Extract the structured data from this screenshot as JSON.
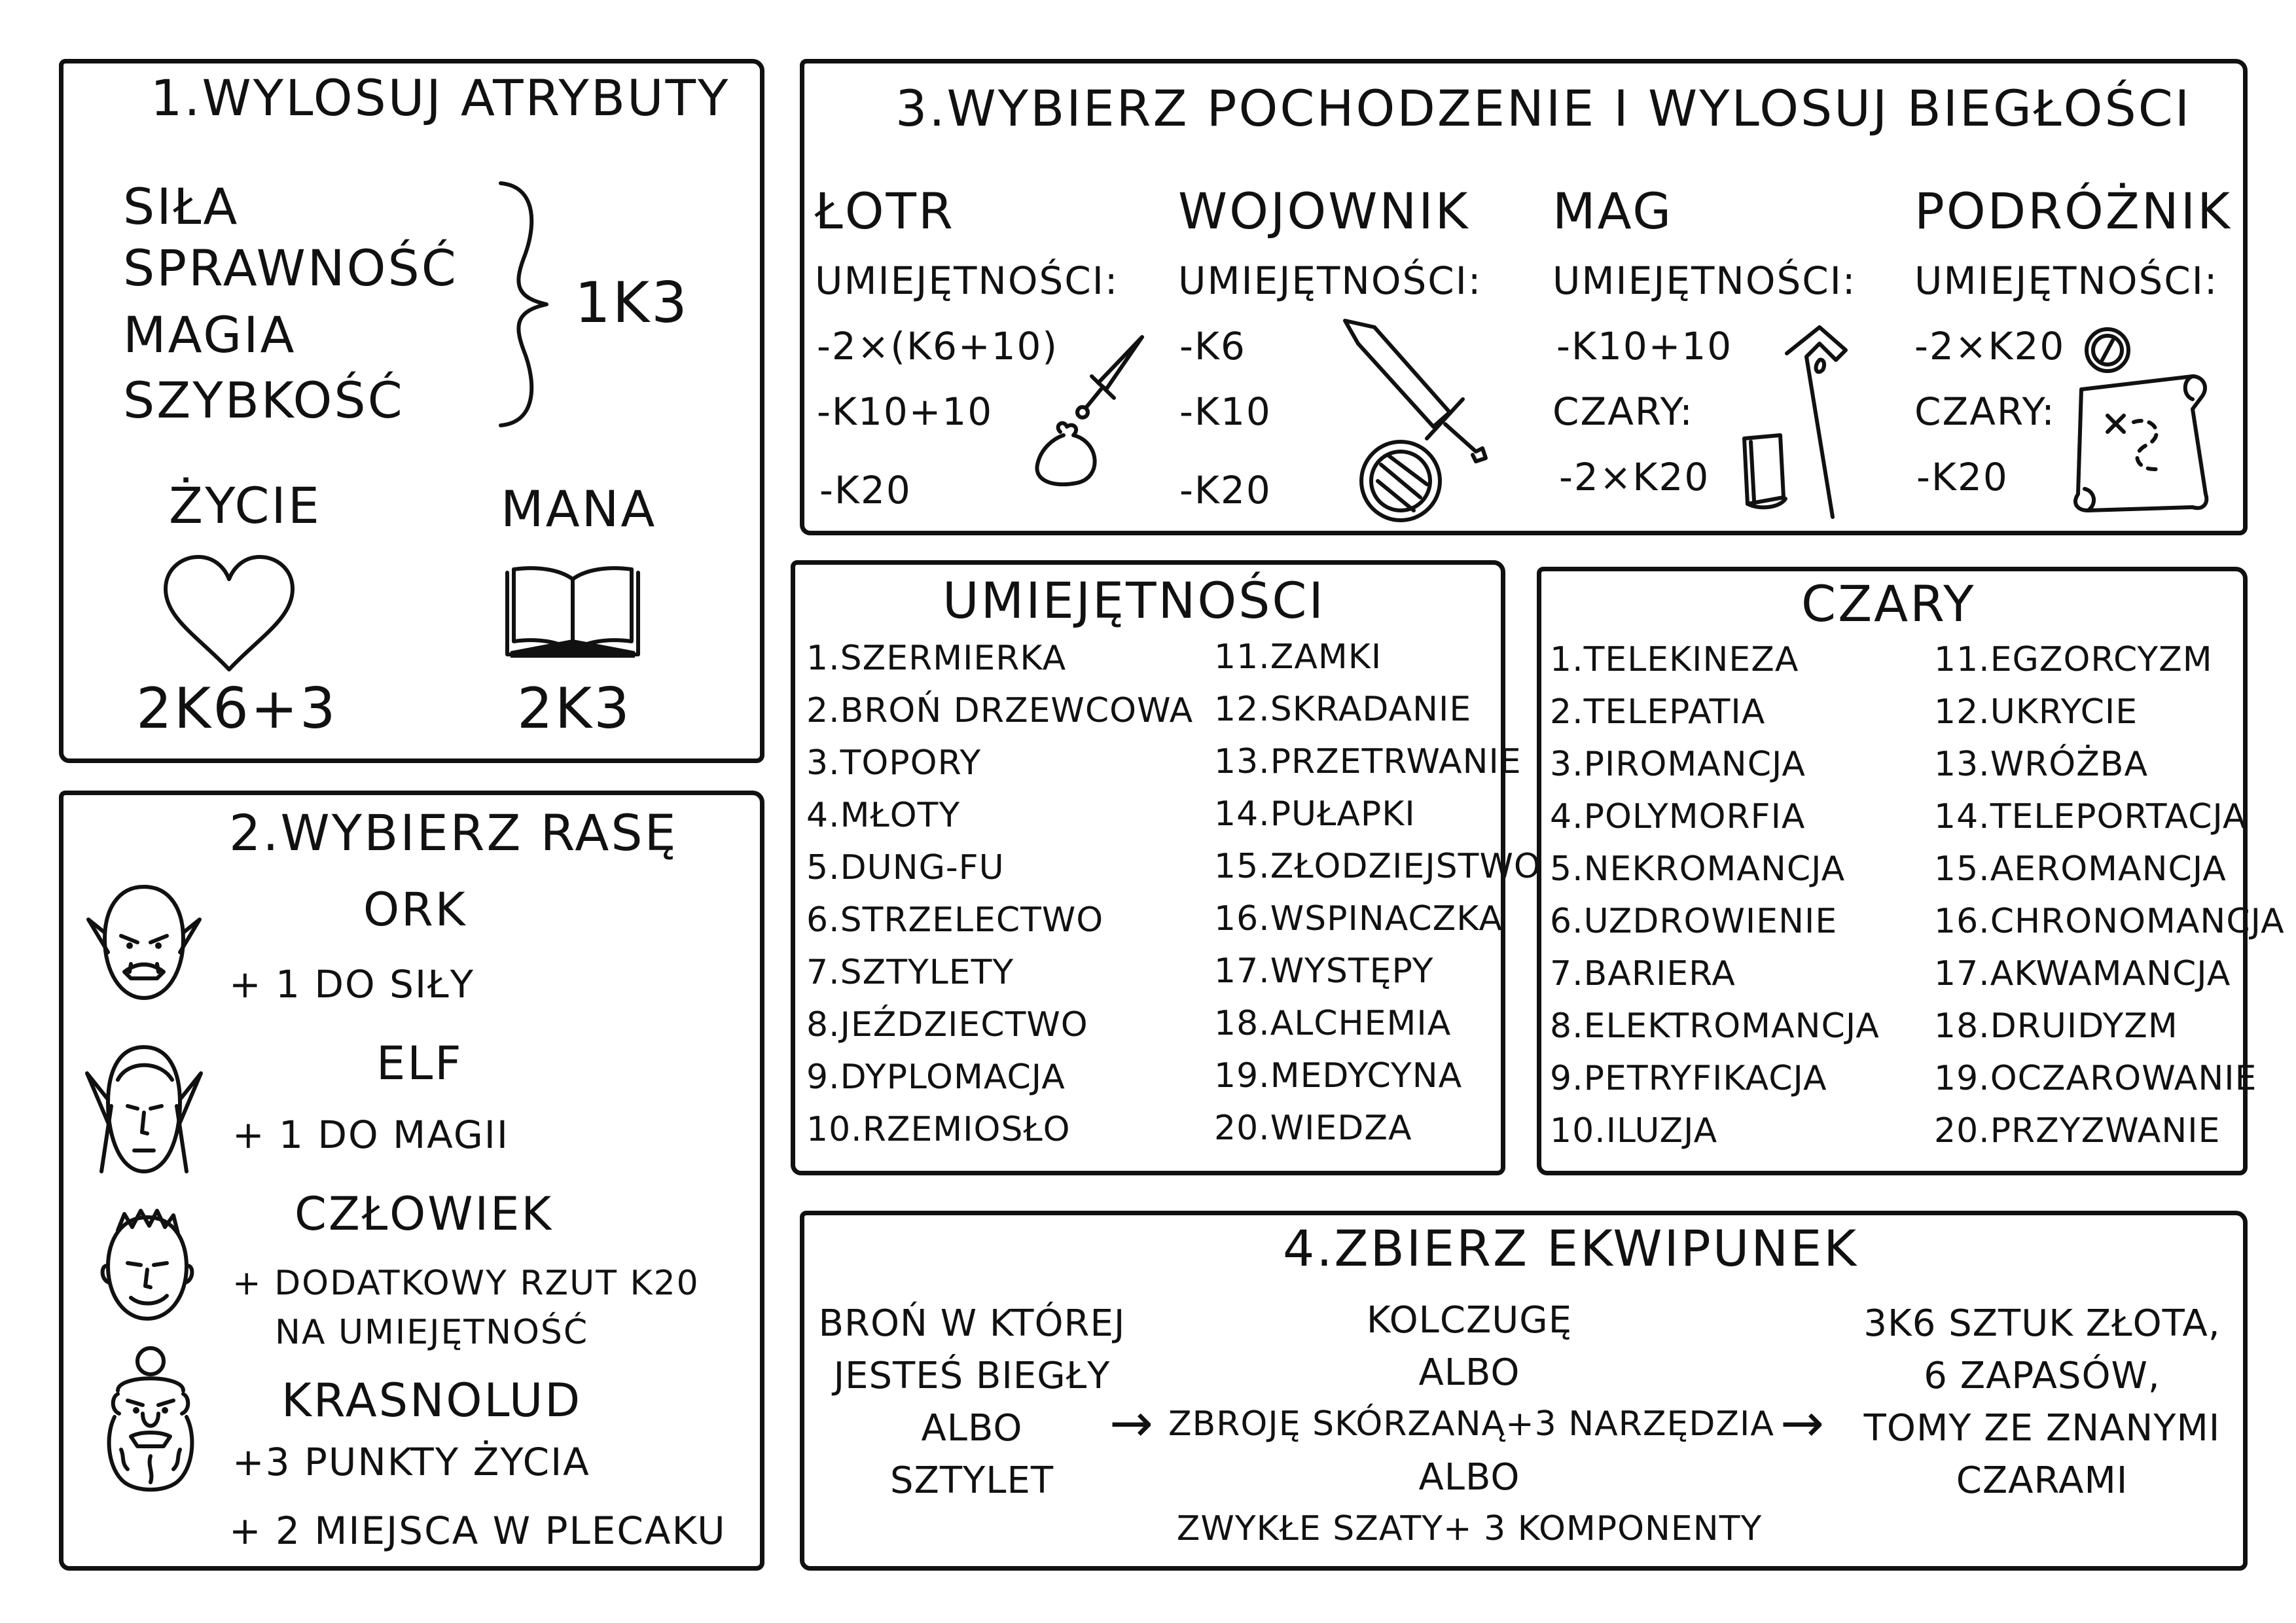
{
  "s1": {
    "title": "1.WYLOSUJ ATRYBUTY",
    "attributes": [
      "SIŁA",
      "SPRAWNOŚĆ",
      "MAGIA",
      "SZYBKOŚĆ"
    ],
    "attr_roll": "1K3",
    "life_label": "ŻYCIE",
    "life_value": "2K6+3",
    "mana_label": "MANA",
    "mana_value": "2K3"
  },
  "s2": {
    "title": "2.WYBIERZ RASĘ",
    "races": [
      {
        "name": "ORK",
        "lines": [
          "+ 1 DO SIŁY"
        ]
      },
      {
        "name": "ELF",
        "lines": [
          "+ 1 DO MAGII"
        ]
      },
      {
        "name": "CZŁOWIEK",
        "lines": [
          "+ DODATKOWY RZUT K20",
          "NA UMIEJĘTNOŚĆ"
        ]
      },
      {
        "name": "KRASNOLUD",
        "lines": [
          "+3 PUNKTY ŻYCIA",
          "+ 2 MIEJSCA W PLECAKU"
        ]
      }
    ]
  },
  "s3": {
    "title": "3.WYBIERZ POCHODZENIE I WYLOSUJ BIEGŁOŚCI",
    "classes": [
      {
        "name": "ŁOTR",
        "skills_label": "UMIEJĘTNOŚCI:",
        "lines": [
          "-2×(K6+10)",
          "-K10+10",
          "-K20"
        ]
      },
      {
        "name": "WOJOWNIK",
        "skills_label": "UMIEJĘTNOŚCI:",
        "lines": [
          "-K6",
          "-K10",
          "-K20"
        ]
      },
      {
        "name": "MAG",
        "skills_label": "UMIEJĘTNOŚCI:",
        "lines": [
          "-K10+10",
          "CZARY:",
          "-2×K20"
        ]
      },
      {
        "name": "PODRÓŻNIK",
        "skills_label": "UMIEJĘTNOŚCI:",
        "lines": [
          "-2×K20",
          "CZARY:",
          "-K20"
        ]
      }
    ]
  },
  "skills": {
    "title": "UMIEJĘTNOŚCI",
    "col1": [
      "1.SZERMIERKA",
      "2.BROŃ DRZEWCOWA",
      "3.TOPORY",
      "4.MŁOTY",
      "5.DUNG-FU",
      "6.STRZELECTWO",
      "7.SZTYLETY",
      "8.JEŹDZIECTWO",
      "9.DYPLOMACJA",
      "10.RZEMIOSŁO"
    ],
    "col2": [
      "11.ZAMKI",
      "12.SKRADANIE",
      "13.PRZETRWANIE",
      "14.PUŁAPKI",
      "15.ZŁODZIEJSTWO",
      "16.WSPINACZKA",
      "17.WYSTĘPY",
      "18.ALCHEMIA",
      "19.MEDYCYNA",
      "20.WIEDZA"
    ]
  },
  "spells": {
    "title": "CZARY",
    "col1": [
      "1.TELEKINEZA",
      "2.TELEPATIA",
      "3.PIROMANCJA",
      "4.POLYMORFIA",
      "5.NEKROMANCJA",
      "6.UZDROWIENIE",
      "7.BARIERA",
      "8.ELEKTROMANCJA",
      "9.PETRYFIKACJA",
      "10.ILUZJA"
    ],
    "col2": [
      "11.EGZORCYZM",
      "12.UKRYCIE",
      "13.WRÓŻBA",
      "14.TELEPORTACJA",
      "15.AEROMANCJA",
      "16.CHRONOMANCJA",
      "17.AKWAMANCJA",
      "18.DRUIDYZM",
      "19.OCZAROWANIE",
      "20.PRZYZWANIE"
    ]
  },
  "s4": {
    "title": "4.ZBIERZ EKWIPUNEK",
    "col1": [
      "BROŃ W KTÓREJ",
      "JESTEŚ BIEGŁY",
      "ALBO",
      "SZTYLET"
    ],
    "col2": [
      "KOLCZUGĘ",
      "ALBO",
      "ZBROJĘ SKÓRZANĄ+3 NARZĘDZIA",
      "ALBO",
      "ZWYKŁE SZATY+ 3 KOMPONENTY"
    ],
    "col3": [
      "3K6 SZTUK ZŁOTA,",
      "6 ZAPASÓW,",
      "TOMY ZE ZNANYMI",
      "CZARAMI"
    ],
    "arrow": "→"
  }
}
